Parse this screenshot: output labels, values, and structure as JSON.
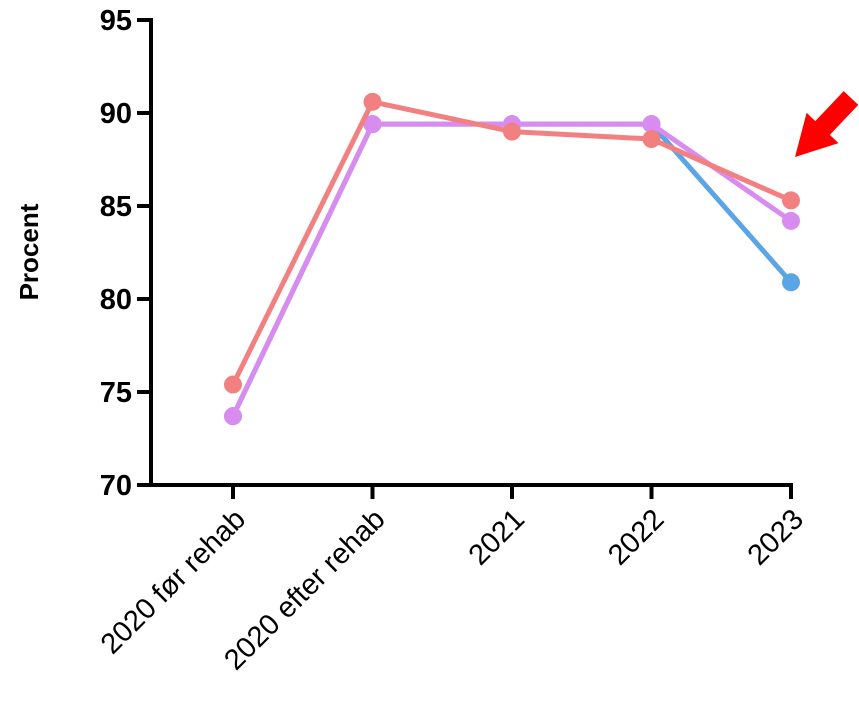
{
  "chart_data": {
    "type": "line",
    "categories": [
      "2020 før rehab",
      "2020 efter rehab",
      "2021",
      "2022",
      "2023"
    ],
    "ylabel": "Procent",
    "xlabel": "",
    "ylim": [
      70,
      95
    ],
    "yticks": [
      70,
      75,
      80,
      85,
      90,
      95
    ],
    "grid": false,
    "legend": "none",
    "series": [
      {
        "color": "#5aa5e6",
        "values": [
          73.7,
          89.4,
          89.4,
          89.4,
          80.9
        ]
      },
      {
        "color": "#d98cf0",
        "values": [
          73.7,
          89.4,
          89.4,
          89.4,
          84.2
        ]
      },
      {
        "color": "#f28080",
        "values": [
          75.4,
          90.6,
          89.0,
          88.6,
          85.3
        ]
      }
    ],
    "annotation": {
      "type": "arrow",
      "color": "#ff0000",
      "points_to_category": "2023"
    }
  }
}
